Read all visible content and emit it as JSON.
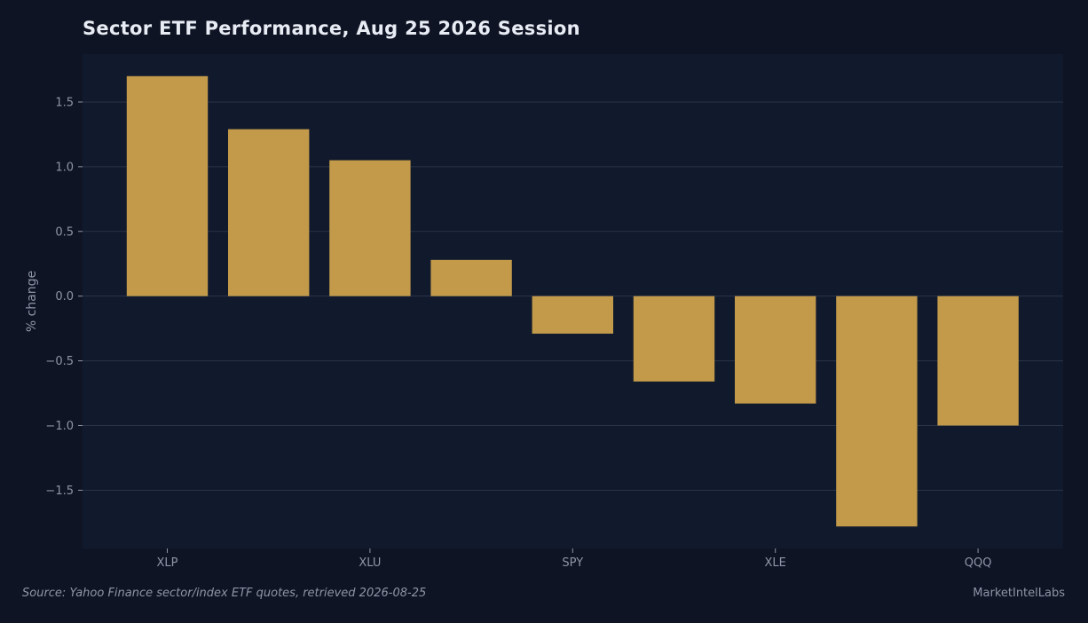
{
  "chart_data": {
    "type": "bar",
    "title": "Sector ETF Performance, Aug 25 2026 Session",
    "xlabel": "",
    "ylabel": "% change",
    "categories": [
      "XLP",
      "",
      "XLU",
      "",
      "SPY",
      "",
      "XLE",
      "",
      "QQQ"
    ],
    "values": [
      1.7,
      1.29,
      1.05,
      0.28,
      -0.29,
      -0.66,
      -0.83,
      -1.78,
      -1.0
    ],
    "ylim": [
      -1.95,
      1.87
    ],
    "yticks": [
      1.5,
      1.0,
      0.5,
      0.0,
      -0.5,
      -1.0,
      -1.5
    ],
    "ytick_labels": [
      "1.5",
      "1.0",
      "0.5",
      "0.0",
      "−0.5",
      "−1.0",
      "−1.5"
    ],
    "grid": true,
    "colors": {
      "bar": "#c29a4a",
      "plot_bg": "#111a2d",
      "page_bg": "#0f1424",
      "grid": "#2a3347",
      "tick_text": "#8d95a6"
    }
  },
  "footer": {
    "source": "Source: Yahoo Finance sector/index ETF quotes, retrieved 2026-08-25",
    "brand": "MarketIntelLabs"
  }
}
